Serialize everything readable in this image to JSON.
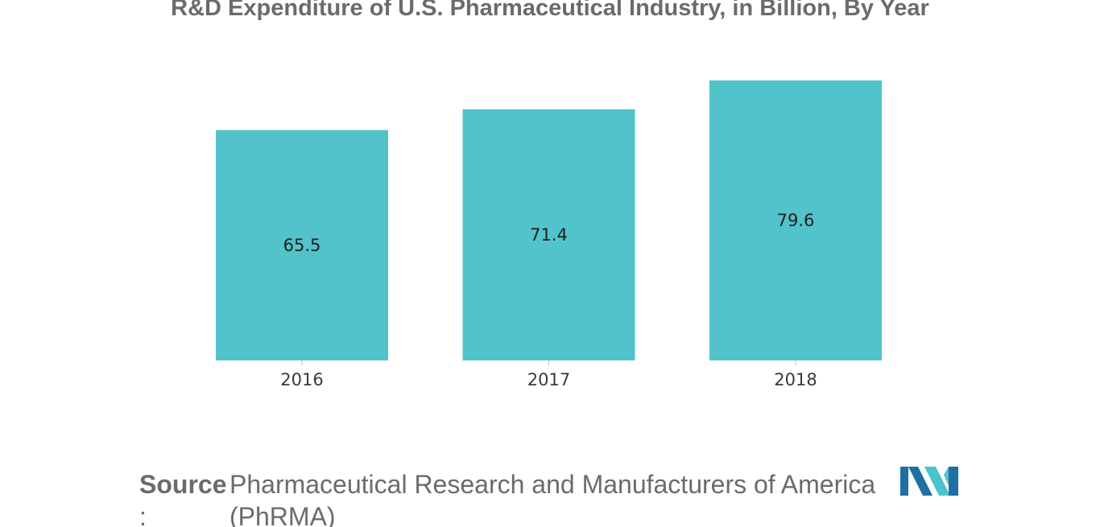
{
  "chart_data": {
    "type": "bar",
    "title": "R&D Expenditure of U.S. Pharmaceutical Industry, in Billion, By Year",
    "categories": [
      "2016",
      "2017",
      "2018"
    ],
    "values": [
      65.5,
      71.4,
      79.6
    ],
    "value_labels": [
      "65.5",
      "71.4",
      "79.6"
    ],
    "xlabel": "",
    "ylabel": "",
    "ylim": [
      0,
      79.6
    ],
    "grid": false,
    "legend": "none",
    "bar_color": "#52c3ca"
  },
  "source": {
    "label": "Source",
    "colon": ":",
    "text": "Pharmaceutical Research and Manufacturers of America (PhRMA)"
  },
  "logo": {
    "icon": "mordor-intelligence-logo",
    "colors": [
      "#1f6fa3",
      "#4cc4cc"
    ]
  }
}
